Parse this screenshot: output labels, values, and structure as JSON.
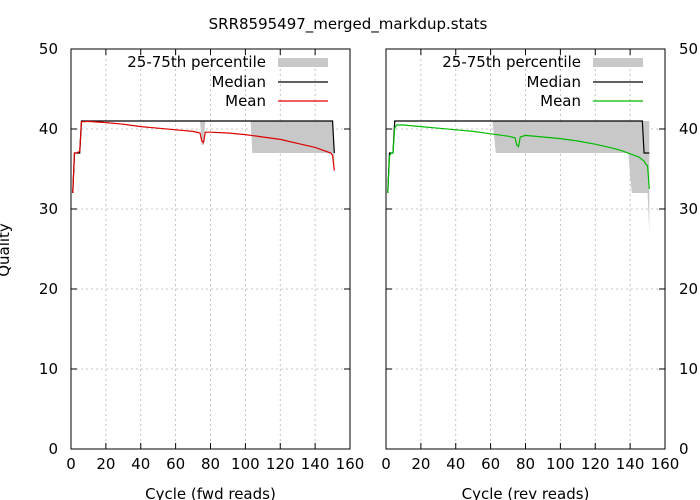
{
  "chart_data": {
    "title": "SRR8595497_merged_markdup.stats",
    "ylabel": "Quality",
    "ylim": [
      0,
      50
    ],
    "yticks": [
      0,
      10,
      20,
      30,
      40,
      50
    ],
    "xlim": [
      0,
      160
    ],
    "xticks": [
      0,
      20,
      40,
      60,
      80,
      100,
      120,
      140,
      160
    ],
    "grid": true,
    "legend_position": "top-right",
    "legend": [
      "25-75th percentile",
      "Median",
      "Mean"
    ],
    "colors": {
      "band": "#c8c8c8",
      "median": "#000000",
      "mean_fwd": "#dd0000",
      "mean_rev": "#00bb00"
    },
    "panels": [
      {
        "type": "line",
        "xlabel": "Cycle (fwd reads)",
        "band": {
          "x": [
            1,
            2,
            3,
            4,
            5,
            6,
            7,
            74,
            75,
            76,
            77,
            78,
            103,
            104,
            105,
            150,
            151
          ],
          "lower": [
            32,
            37,
            37,
            37,
            37,
            41,
            41,
            41,
            38,
            38,
            41,
            41,
            41,
            37,
            37,
            37,
            35
          ],
          "upper": [
            32,
            37,
            37,
            37,
            37,
            41,
            41,
            41,
            41,
            41,
            41,
            41,
            41,
            41,
            41,
            41,
            37
          ]
        },
        "median": {
          "x": [
            1,
            2,
            5,
            6,
            150,
            151
          ],
          "y": [
            32,
            37,
            37,
            41,
            41,
            37
          ]
        },
        "mean": {
          "x": [
            1,
            2,
            3,
            5,
            6,
            10,
            20,
            30,
            40,
            50,
            60,
            70,
            74,
            75,
            76,
            77,
            80,
            90,
            100,
            110,
            120,
            130,
            140,
            149,
            150,
            151
          ],
          "y": [
            32,
            37,
            37,
            37.2,
            40.9,
            40.95,
            40.8,
            40.6,
            40.3,
            40.1,
            39.9,
            39.7,
            39.5,
            38.5,
            38.3,
            39.6,
            39.6,
            39.5,
            39.3,
            39.0,
            38.7,
            38.2,
            37.7,
            37.0,
            36.7,
            34.8
          ]
        }
      },
      {
        "type": "line",
        "xlabel": "Cycle (rev reads)",
        "band": {
          "x": [
            1,
            2,
            3,
            4,
            5,
            6,
            61,
            62,
            63,
            139,
            140,
            141,
            147,
            148,
            150,
            151
          ],
          "lower": [
            32,
            37,
            37,
            37,
            41,
            41,
            41,
            39,
            37,
            37,
            34,
            32,
            32,
            32,
            32,
            27
          ],
          "upper": [
            32,
            37,
            37,
            37,
            41,
            41,
            41,
            41,
            41,
            41,
            41,
            41,
            41,
            41,
            41,
            41
          ]
        },
        "median": {
          "x": [
            1,
            2,
            4,
            5,
            147,
            148,
            151
          ],
          "y": [
            32,
            37,
            37,
            41,
            41,
            37,
            37
          ]
        },
        "mean": {
          "x": [
            1,
            2,
            3,
            4,
            5,
            6,
            10,
            20,
            30,
            40,
            50,
            60,
            70,
            74,
            75,
            76,
            77,
            80,
            90,
            100,
            110,
            120,
            130,
            135,
            140,
            145,
            148,
            149,
            150,
            151
          ],
          "y": [
            32,
            36.6,
            37,
            37,
            40.1,
            40.5,
            40.5,
            40.3,
            40.1,
            39.9,
            39.7,
            39.4,
            39.1,
            38.9,
            38.0,
            37.8,
            39.0,
            39.2,
            39.0,
            38.8,
            38.5,
            38.1,
            37.6,
            37.3,
            36.9,
            36.5,
            36.0,
            35.6,
            35.4,
            32.5
          ]
        }
      }
    ]
  }
}
